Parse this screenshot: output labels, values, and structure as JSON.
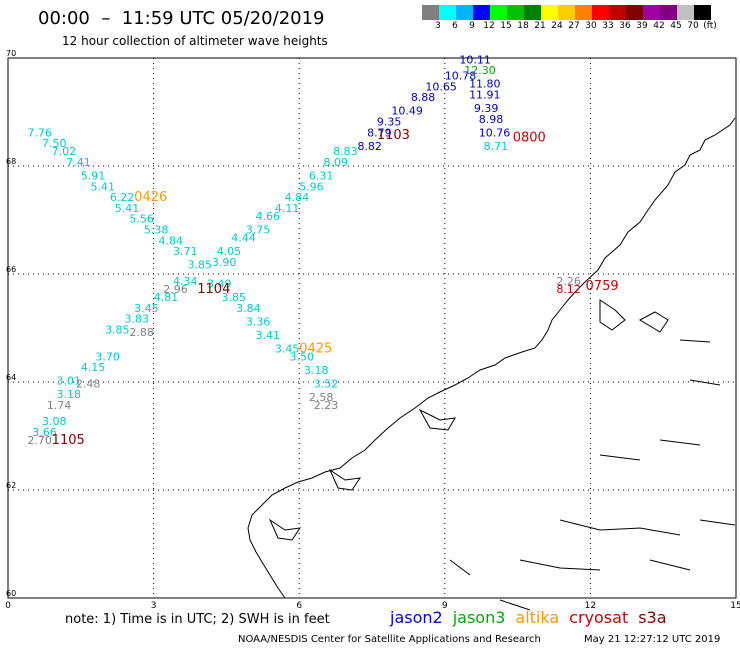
{
  "header": {
    "title": "00:00  –  11:59 UTC 05/20/2019",
    "subtitle": "12 hour collection of altimeter wave heights"
  },
  "colorbar": {
    "colors": [
      "#808080",
      "#00ffff",
      "#00b4ff",
      "#0000ff",
      "#00ff00",
      "#00c000",
      "#008000",
      "#ffff00",
      "#ffcc00",
      "#ff8000",
      "#ff0000",
      "#c00000",
      "#800000",
      "#a000a0",
      "#800080",
      "#c0c0c0",
      "#000000"
    ],
    "labels": [
      "3",
      "6",
      "9",
      "12",
      "15",
      "18",
      "21",
      "24",
      "27",
      "30",
      "33",
      "36",
      "39",
      "42",
      "45",
      "70",
      "(ft)"
    ]
  },
  "axes": {
    "x_ticks": [
      "0",
      "3",
      "6",
      "9",
      "12",
      "15"
    ],
    "y_ticks": [
      "70",
      "68",
      "66",
      "64",
      "62",
      "60"
    ],
    "lon_range": [
      0,
      15
    ],
    "lat_range": [
      60,
      70
    ]
  },
  "chart_data": {
    "type": "map-track-labels",
    "tracks": [
      {
        "satellite": "jason2",
        "color": "#0000cc",
        "time_label": "1103",
        "time_color": "#800000",
        "points": [
          [
            "10.11",
            9.3,
            69.9
          ],
          [
            "10.78",
            9.0,
            69.6
          ],
          [
            "10.65",
            8.6,
            69.4
          ],
          [
            "8.88",
            8.3,
            69.2
          ],
          [
            "10.49",
            7.9,
            68.95
          ],
          [
            "9.35",
            7.6,
            68.75
          ],
          [
            "8.79",
            7.4,
            68.55
          ],
          [
            "8.82",
            7.2,
            68.3
          ]
        ]
      },
      {
        "satellite": "jason3",
        "color": "#00aa00",
        "time_label": "",
        "time_color": "",
        "points": [
          [
            "12.30",
            9.4,
            69.7
          ]
        ]
      },
      {
        "satellite": "jason2",
        "color": "#0000cc",
        "time_label": "0800",
        "time_color": "#cc0000",
        "points": [
          [
            "11.80",
            9.5,
            69.45
          ],
          [
            "11.91",
            9.5,
            69.25
          ],
          [
            "9.39",
            9.6,
            69.0
          ],
          [
            "8.98",
            9.7,
            68.8
          ],
          [
            "10.76",
            9.7,
            68.55
          ]
        ]
      },
      {
        "satellite": "cyan-group",
        "color": "#00cccc",
        "time_label": "",
        "time_color": "",
        "points": [
          [
            "8.71",
            9.8,
            68.3
          ],
          [
            "8.83",
            6.7,
            68.2
          ],
          [
            "8.09",
            6.5,
            68.0
          ],
          [
            "6.31",
            6.2,
            67.75
          ],
          [
            "5.96",
            6.0,
            67.55
          ],
          [
            "4.84",
            5.7,
            67.35
          ],
          [
            "4.11",
            5.5,
            67.15
          ],
          [
            "4.66",
            5.1,
            67.0
          ],
          [
            "3.75",
            4.9,
            66.75
          ],
          [
            "4.44",
            4.6,
            66.6
          ],
          [
            "4.05",
            4.3,
            66.35
          ],
          [
            "3.90",
            4.2,
            66.15
          ],
          [
            "7.76",
            0.4,
            68.55
          ],
          [
            "7.50",
            0.7,
            68.35
          ],
          [
            "7.02",
            0.9,
            68.2
          ],
          [
            "7.41",
            1.2,
            68.0
          ],
          [
            "5.91",
            1.5,
            67.75
          ],
          [
            "5.41",
            1.7,
            67.55
          ],
          [
            "6.22",
            2.1,
            67.35
          ],
          [
            "5.41",
            2.2,
            67.15
          ],
          [
            "5.56",
            2.5,
            66.95
          ],
          [
            "5.38",
            2.8,
            66.75
          ],
          [
            "4.84",
            3.1,
            66.55
          ],
          [
            "3.71",
            3.4,
            66.35
          ],
          [
            "3.85",
            3.7,
            66.1
          ],
          [
            "3.49",
            4.1,
            65.75
          ],
          [
            "4.34",
            3.4,
            65.8
          ],
          [
            "4.81",
            3.0,
            65.5
          ],
          [
            "3.45",
            2.6,
            65.3
          ],
          [
            "3.83",
            2.4,
            65.1
          ],
          [
            "3.85",
            2.0,
            64.9
          ],
          [
            "3.70",
            1.8,
            64.4
          ],
          [
            "4.15",
            1.5,
            64.2
          ],
          [
            "3.01",
            1.0,
            63.95
          ],
          [
            "3.18",
            1.0,
            63.7
          ],
          [
            "3.08",
            0.7,
            63.2
          ],
          [
            "3.66",
            0.5,
            63.0
          ],
          [
            "3.85",
            4.4,
            65.5
          ],
          [
            "3.84",
            4.7,
            65.3
          ],
          [
            "3.36",
            4.9,
            65.05
          ],
          [
            "3.41",
            5.1,
            64.8
          ],
          [
            "3.45",
            5.5,
            64.55
          ],
          [
            "3.50",
            5.8,
            64.4
          ],
          [
            "3.18",
            6.1,
            64.15
          ],
          [
            "3.52",
            6.3,
            63.9
          ]
        ]
      },
      {
        "satellite": "gray-group",
        "color": "#808080",
        "time_label": "1104",
        "time_color": "#800000",
        "points": [
          [
            "2.96",
            3.2,
            65.65
          ],
          [
            "2.88",
            2.5,
            64.85
          ],
          [
            "2.48",
            1.4,
            63.9
          ],
          [
            "1.74",
            0.8,
            63.5
          ],
          [
            "2.70",
            0.4,
            62.85
          ],
          [
            "2.58",
            6.2,
            63.65
          ],
          [
            "2.23",
            6.3,
            63.5
          ],
          [
            "2.26",
            11.3,
            65.8
          ]
        ]
      },
      {
        "satellite": "altika",
        "color": "#ff9900",
        "time_label": "0426",
        "time_color": "#ff9900",
        "points": []
      },
      {
        "satellite": "altika",
        "color": "#ff9900",
        "time_label": "0425",
        "time_color": "#ff9900",
        "points": []
      },
      {
        "satellite": "cryosat",
        "color": "#cc0000",
        "time_label": "0759",
        "time_color": "#cc0000",
        "points": [
          [
            "8.12",
            11.3,
            65.65
          ]
        ]
      }
    ],
    "time_labels": [
      {
        "text": "1103",
        "color": "#800000",
        "lon": 7.6,
        "lat": 68.5
      },
      {
        "text": "0800",
        "color": "#cc0000",
        "lon": 10.4,
        "lat": 68.45
      },
      {
        "text": "0426",
        "color": "#ff9900",
        "lon": 2.6,
        "lat": 67.35
      },
      {
        "text": "1104",
        "color": "#800000",
        "lon": 3.9,
        "lat": 65.65
      },
      {
        "text": "0425",
        "color": "#ff9900",
        "lon": 6.0,
        "lat": 64.55
      },
      {
        "text": "0759",
        "color": "#cc0000",
        "lon": 11.9,
        "lat": 65.7
      },
      {
        "text": "1105",
        "color": "#800000",
        "lon": 0.9,
        "lat": 62.85
      }
    ]
  },
  "footer": {
    "note": "note:  1) Time is in UTC;  2) SWH is in feet",
    "legend": [
      {
        "name": "jason2",
        "color": "#0000ee"
      },
      {
        "name": "jason3",
        "color": "#00aa00"
      },
      {
        "name": "altika",
        "color": "#ff9900"
      },
      {
        "name": "cryosat",
        "color": "#cc0000"
      },
      {
        "name": "s3a",
        "color": "#800000"
      }
    ],
    "credit_left": "NOAA/NESDIS Center for Satellite Applications and Research",
    "credit_right": "May 21 12:27:12 UTC 2019"
  }
}
